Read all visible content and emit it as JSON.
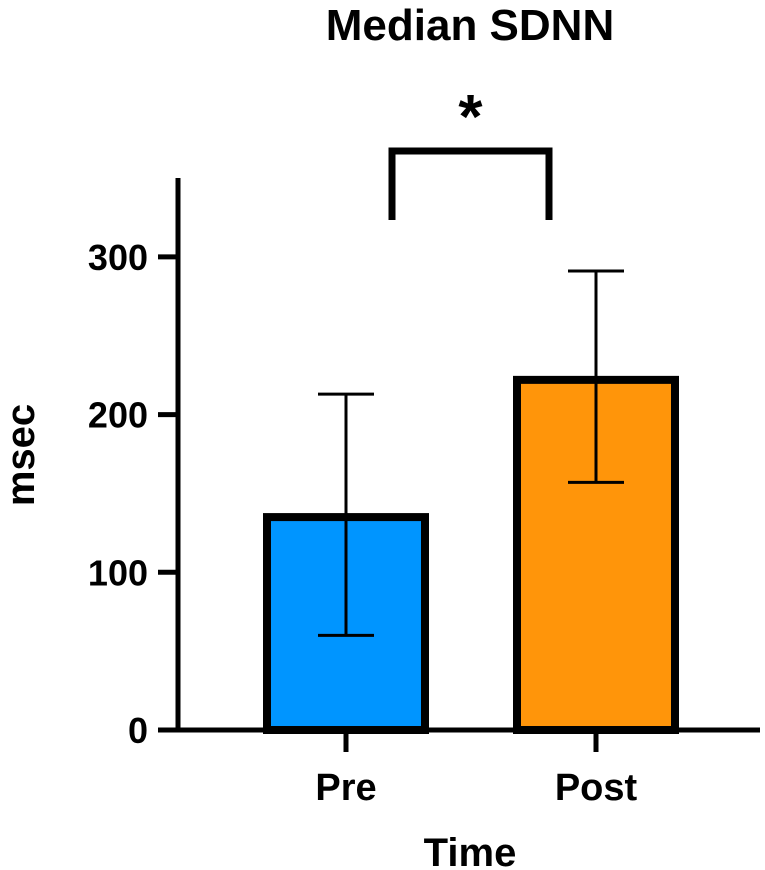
{
  "chart_data": {
    "type": "bar",
    "title": "Median SDNN",
    "xlabel": "Time",
    "ylabel": "msec",
    "categories": [
      "Pre",
      "Post"
    ],
    "values": [
      135,
      222
    ],
    "error_bars": [
      {
        "low": 60,
        "high": 213
      },
      {
        "low": 157,
        "high": 291
      }
    ],
    "colors": [
      "#0095ff",
      "#ff950a"
    ],
    "ylim": [
      0,
      350
    ],
    "yticks": [
      0,
      100,
      200,
      300
    ],
    "ytick_labels": [
      "0",
      "100",
      "200",
      "300"
    ],
    "grid": false,
    "significance": {
      "between": [
        "Pre",
        "Post"
      ],
      "label": "*"
    }
  }
}
